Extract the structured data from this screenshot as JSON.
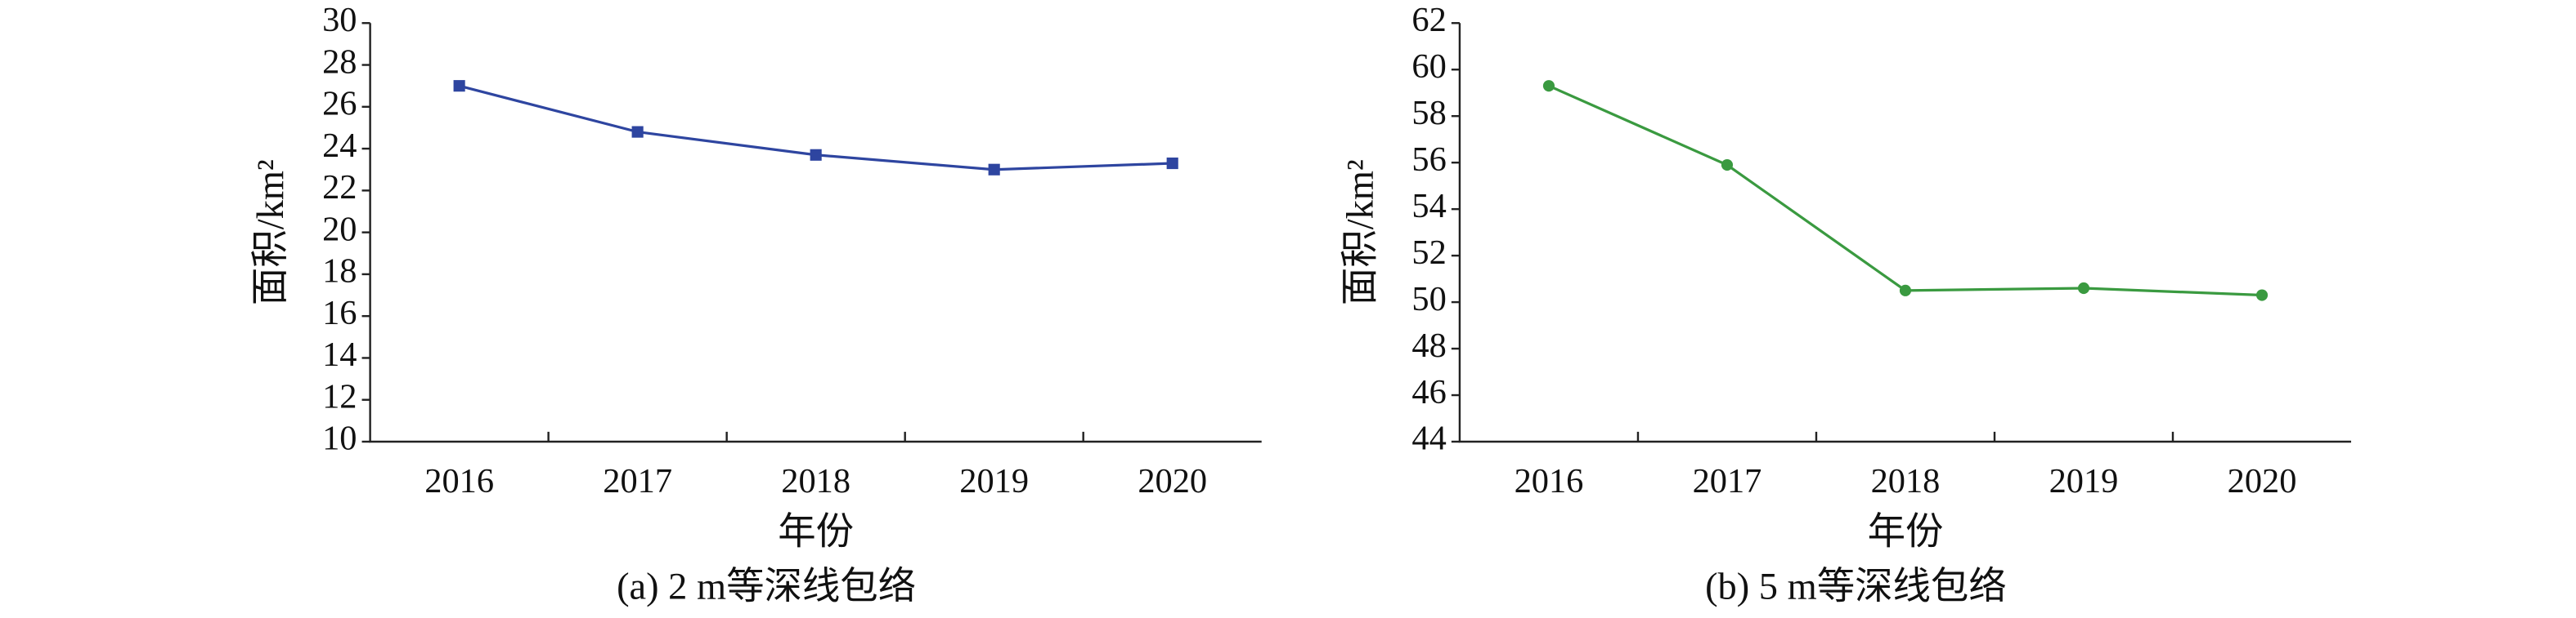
{
  "chart_data": [
    {
      "type": "line",
      "categories": [
        "2016",
        "2017",
        "2018",
        "2019",
        "2020"
      ],
      "values": [
        27.0,
        24.8,
        23.7,
        23.0,
        23.3
      ],
      "color": "#2e45a0",
      "marker": "square",
      "ylim": [
        10,
        30
      ],
      "yticks": [
        10,
        12,
        14,
        16,
        18,
        20,
        22,
        24,
        26,
        28,
        30
      ],
      "grid": false,
      "xlabel": "年份",
      "ylabel": "面积/km²",
      "caption": "(a) 2 m等深线包络"
    },
    {
      "type": "line",
      "categories": [
        "2016",
        "2017",
        "2018",
        "2019",
        "2020"
      ],
      "values": [
        59.3,
        55.9,
        50.5,
        50.6,
        50.3
      ],
      "color": "#3a9a40",
      "marker": "circle",
      "ylim": [
        44,
        62
      ],
      "yticks": [
        44,
        46,
        48,
        50,
        52,
        54,
        56,
        58,
        60,
        62
      ],
      "grid": false,
      "xlabel": "年份",
      "ylabel": "面积/km²",
      "caption": "(b) 5 m等深线包络"
    }
  ]
}
